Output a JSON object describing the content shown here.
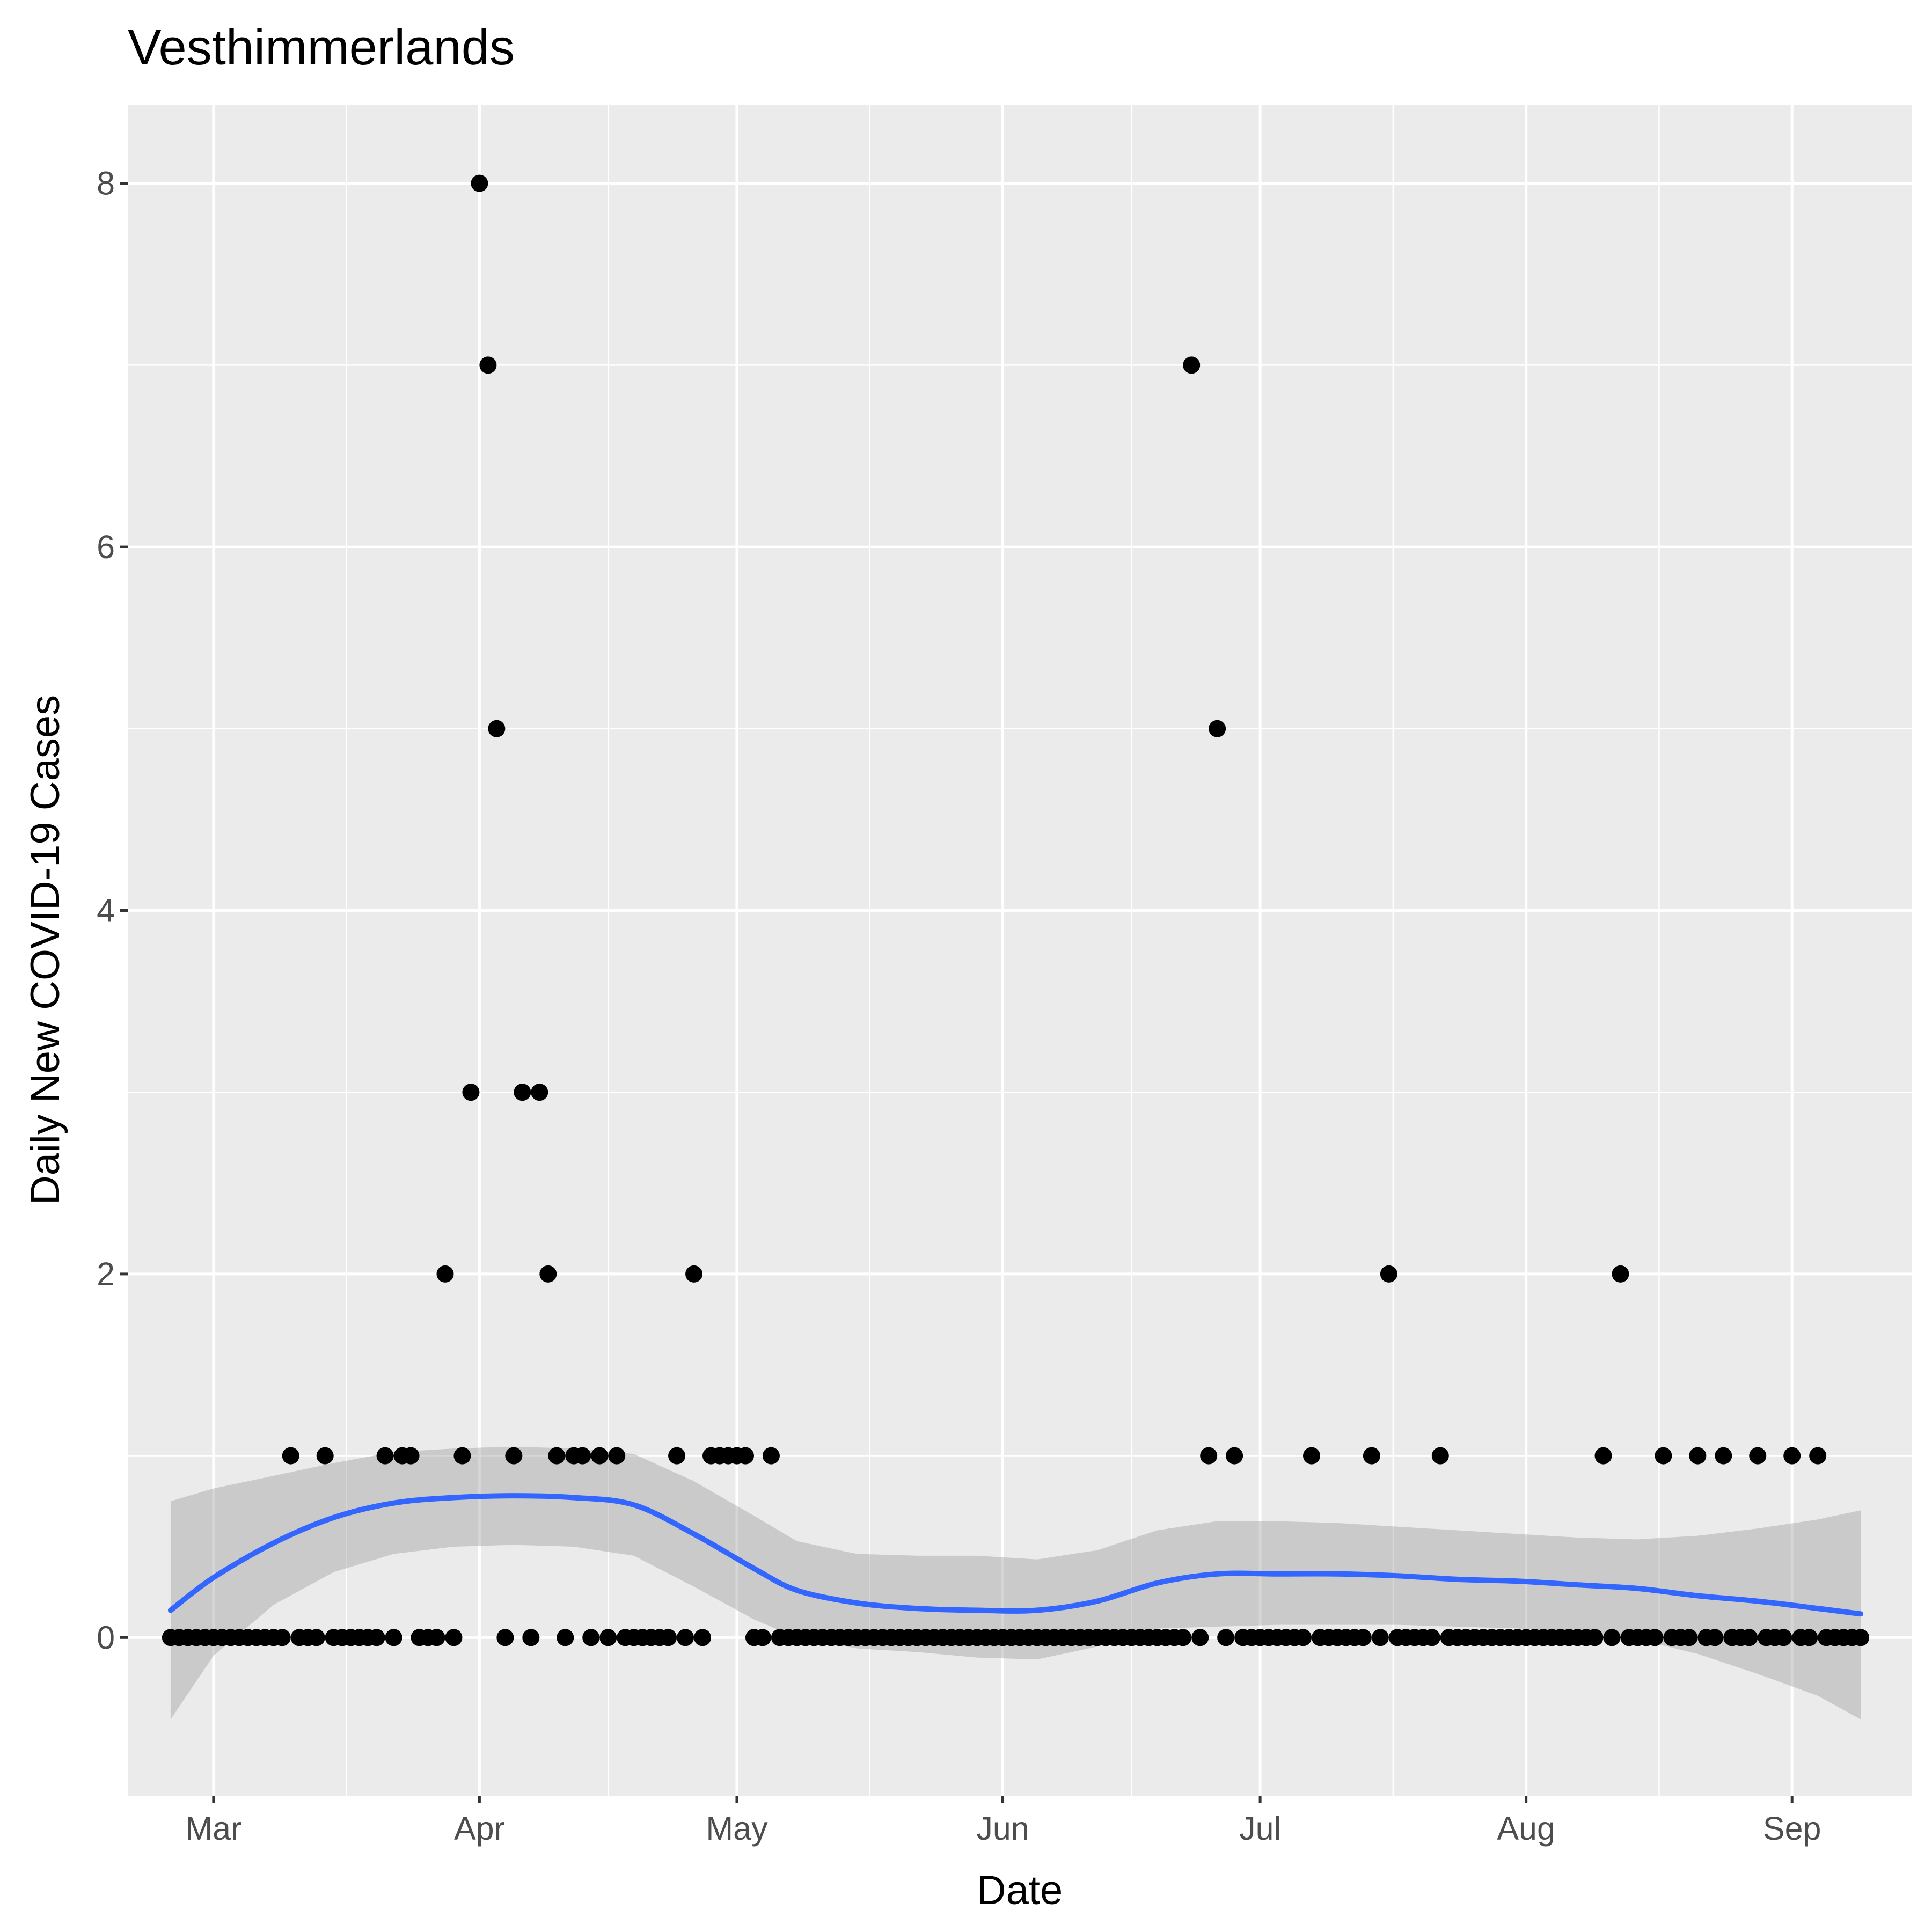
{
  "chart_data": {
    "type": "scatter",
    "title": "Vesthimmerlands",
    "xlabel": "Date",
    "ylabel": "Daily New COVID-19 Cases",
    "x_type": "date",
    "xlim": [
      "2020-02-20",
      "2020-09-15"
    ],
    "ylim": [
      -0.87,
      8.43
    ],
    "x_ticks": [
      {
        "date": "2020-03-01",
        "label": "Mar"
      },
      {
        "date": "2020-04-01",
        "label": "Apr"
      },
      {
        "date": "2020-05-01",
        "label": "May"
      },
      {
        "date": "2020-06-01",
        "label": "Jun"
      },
      {
        "date": "2020-07-01",
        "label": "Jul"
      },
      {
        "date": "2020-08-01",
        "label": "Aug"
      },
      {
        "date": "2020-09-01",
        "label": "Sep"
      }
    ],
    "y_ticks": [
      0,
      2,
      4,
      6,
      8
    ],
    "grid": true,
    "series": [
      {
        "type": "points",
        "color": "#000000",
        "points": [
          [
            "2020-02-25",
            0
          ],
          [
            "2020-02-26",
            0
          ],
          [
            "2020-02-27",
            0
          ],
          [
            "2020-02-28",
            0
          ],
          [
            "2020-02-29",
            0
          ],
          [
            "2020-03-01",
            0
          ],
          [
            "2020-03-02",
            0
          ],
          [
            "2020-03-03",
            0
          ],
          [
            "2020-03-04",
            0
          ],
          [
            "2020-03-05",
            0
          ],
          [
            "2020-03-06",
            0
          ],
          [
            "2020-03-07",
            0
          ],
          [
            "2020-03-08",
            0
          ],
          [
            "2020-03-09",
            0
          ],
          [
            "2020-03-10",
            1
          ],
          [
            "2020-03-11",
            0
          ],
          [
            "2020-03-12",
            0
          ],
          [
            "2020-03-13",
            0
          ],
          [
            "2020-03-14",
            1
          ],
          [
            "2020-03-15",
            0
          ],
          [
            "2020-03-16",
            0
          ],
          [
            "2020-03-17",
            0
          ],
          [
            "2020-03-18",
            0
          ],
          [
            "2020-03-19",
            0
          ],
          [
            "2020-03-20",
            0
          ],
          [
            "2020-03-21",
            1
          ],
          [
            "2020-03-22",
            0
          ],
          [
            "2020-03-23",
            1
          ],
          [
            "2020-03-24",
            1
          ],
          [
            "2020-03-25",
            0
          ],
          [
            "2020-03-26",
            0
          ],
          [
            "2020-03-27",
            0
          ],
          [
            "2020-03-28",
            2
          ],
          [
            "2020-03-29",
            0
          ],
          [
            "2020-03-30",
            1
          ],
          [
            "2020-03-31",
            3
          ],
          [
            "2020-04-01",
            8
          ],
          [
            "2020-04-02",
            7
          ],
          [
            "2020-04-03",
            5
          ],
          [
            "2020-04-04",
            0
          ],
          [
            "2020-04-05",
            1
          ],
          [
            "2020-04-06",
            3
          ],
          [
            "2020-04-07",
            0
          ],
          [
            "2020-04-08",
            3
          ],
          [
            "2020-04-09",
            2
          ],
          [
            "2020-04-10",
            1
          ],
          [
            "2020-04-11",
            0
          ],
          [
            "2020-04-12",
            1
          ],
          [
            "2020-04-13",
            1
          ],
          [
            "2020-04-14",
            0
          ],
          [
            "2020-04-15",
            1
          ],
          [
            "2020-04-16",
            0
          ],
          [
            "2020-04-17",
            1
          ],
          [
            "2020-04-18",
            0
          ],
          [
            "2020-04-19",
            0
          ],
          [
            "2020-04-20",
            0
          ],
          [
            "2020-04-21",
            0
          ],
          [
            "2020-04-22",
            0
          ],
          [
            "2020-04-23",
            0
          ],
          [
            "2020-04-24",
            1
          ],
          [
            "2020-04-25",
            0
          ],
          [
            "2020-04-26",
            2
          ],
          [
            "2020-04-27",
            0
          ],
          [
            "2020-04-28",
            1
          ],
          [
            "2020-04-29",
            1
          ],
          [
            "2020-04-30",
            1
          ],
          [
            "2020-05-01",
            1
          ],
          [
            "2020-05-02",
            1
          ],
          [
            "2020-05-03",
            0
          ],
          [
            "2020-05-04",
            0
          ],
          [
            "2020-05-05",
            1
          ],
          [
            "2020-05-06",
            0
          ],
          [
            "2020-05-07",
            0
          ],
          [
            "2020-05-08",
            0
          ],
          [
            "2020-05-09",
            0
          ],
          [
            "2020-05-10",
            0
          ],
          [
            "2020-05-11",
            0
          ],
          [
            "2020-05-12",
            0
          ],
          [
            "2020-05-13",
            0
          ],
          [
            "2020-05-14",
            0
          ],
          [
            "2020-05-15",
            0
          ],
          [
            "2020-05-16",
            0
          ],
          [
            "2020-05-17",
            0
          ],
          [
            "2020-05-18",
            0
          ],
          [
            "2020-05-19",
            0
          ],
          [
            "2020-05-20",
            0
          ],
          [
            "2020-05-21",
            0
          ],
          [
            "2020-05-22",
            0
          ],
          [
            "2020-05-23",
            0
          ],
          [
            "2020-05-24",
            0
          ],
          [
            "2020-05-25",
            0
          ],
          [
            "2020-05-26",
            0
          ],
          [
            "2020-05-27",
            0
          ],
          [
            "2020-05-28",
            0
          ],
          [
            "2020-05-29",
            0
          ],
          [
            "2020-05-30",
            0
          ],
          [
            "2020-05-31",
            0
          ],
          [
            "2020-06-01",
            0
          ],
          [
            "2020-06-02",
            0
          ],
          [
            "2020-06-03",
            0
          ],
          [
            "2020-06-04",
            0
          ],
          [
            "2020-06-05",
            0
          ],
          [
            "2020-06-06",
            0
          ],
          [
            "2020-06-07",
            0
          ],
          [
            "2020-06-08",
            0
          ],
          [
            "2020-06-09",
            0
          ],
          [
            "2020-06-10",
            0
          ],
          [
            "2020-06-11",
            0
          ],
          [
            "2020-06-12",
            0
          ],
          [
            "2020-06-13",
            0
          ],
          [
            "2020-06-14",
            0
          ],
          [
            "2020-06-15",
            0
          ],
          [
            "2020-06-16",
            0
          ],
          [
            "2020-06-17",
            0
          ],
          [
            "2020-06-18",
            0
          ],
          [
            "2020-06-19",
            0
          ],
          [
            "2020-06-20",
            0
          ],
          [
            "2020-06-21",
            0
          ],
          [
            "2020-06-22",
            0
          ],
          [
            "2020-06-23",
            7
          ],
          [
            "2020-06-24",
            0
          ],
          [
            "2020-06-25",
            1
          ],
          [
            "2020-06-26",
            5
          ],
          [
            "2020-06-27",
            0
          ],
          [
            "2020-06-28",
            1
          ],
          [
            "2020-06-29",
            0
          ],
          [
            "2020-06-30",
            0
          ],
          [
            "2020-07-01",
            0
          ],
          [
            "2020-07-02",
            0
          ],
          [
            "2020-07-03",
            0
          ],
          [
            "2020-07-04",
            0
          ],
          [
            "2020-07-05",
            0
          ],
          [
            "2020-07-06",
            0
          ],
          [
            "2020-07-07",
            1
          ],
          [
            "2020-07-08",
            0
          ],
          [
            "2020-07-09",
            0
          ],
          [
            "2020-07-10",
            0
          ],
          [
            "2020-07-11",
            0
          ],
          [
            "2020-07-12",
            0
          ],
          [
            "2020-07-13",
            0
          ],
          [
            "2020-07-14",
            1
          ],
          [
            "2020-07-15",
            0
          ],
          [
            "2020-07-16",
            2
          ],
          [
            "2020-07-17",
            0
          ],
          [
            "2020-07-18",
            0
          ],
          [
            "2020-07-19",
            0
          ],
          [
            "2020-07-20",
            0
          ],
          [
            "2020-07-21",
            0
          ],
          [
            "2020-07-22",
            1
          ],
          [
            "2020-07-23",
            0
          ],
          [
            "2020-07-24",
            0
          ],
          [
            "2020-07-25",
            0
          ],
          [
            "2020-07-26",
            0
          ],
          [
            "2020-07-27",
            0
          ],
          [
            "2020-07-28",
            0
          ],
          [
            "2020-07-29",
            0
          ],
          [
            "2020-07-30",
            0
          ],
          [
            "2020-07-31",
            0
          ],
          [
            "2020-08-01",
            0
          ],
          [
            "2020-08-02",
            0
          ],
          [
            "2020-08-03",
            0
          ],
          [
            "2020-08-04",
            0
          ],
          [
            "2020-08-05",
            0
          ],
          [
            "2020-08-06",
            0
          ],
          [
            "2020-08-07",
            0
          ],
          [
            "2020-08-08",
            0
          ],
          [
            "2020-08-09",
            0
          ],
          [
            "2020-08-10",
            1
          ],
          [
            "2020-08-11",
            0
          ],
          [
            "2020-08-12",
            2
          ],
          [
            "2020-08-13",
            0
          ],
          [
            "2020-08-14",
            0
          ],
          [
            "2020-08-15",
            0
          ],
          [
            "2020-08-16",
            0
          ],
          [
            "2020-08-17",
            1
          ],
          [
            "2020-08-18",
            0
          ],
          [
            "2020-08-19",
            0
          ],
          [
            "2020-08-20",
            0
          ],
          [
            "2020-08-21",
            1
          ],
          [
            "2020-08-22",
            0
          ],
          [
            "2020-08-23",
            0
          ],
          [
            "2020-08-24",
            1
          ],
          [
            "2020-08-25",
            0
          ],
          [
            "2020-08-26",
            0
          ],
          [
            "2020-08-27",
            0
          ],
          [
            "2020-08-28",
            1
          ],
          [
            "2020-08-29",
            0
          ],
          [
            "2020-08-30",
            0
          ],
          [
            "2020-08-31",
            0
          ],
          [
            "2020-09-01",
            1
          ],
          [
            "2020-09-02",
            0
          ],
          [
            "2020-09-03",
            0
          ],
          [
            "2020-09-04",
            1
          ],
          [
            "2020-09-05",
            0
          ],
          [
            "2020-09-06",
            0
          ],
          [
            "2020-09-07",
            0
          ],
          [
            "2020-09-08",
            0
          ],
          [
            "2020-09-09",
            0
          ]
        ]
      },
      {
        "type": "smooth",
        "color": "#3366FF",
        "band_color": "#999999",
        "points": [
          [
            "2020-02-25",
            0.15,
            -0.45,
            0.75
          ],
          [
            "2020-03-01",
            0.33,
            -0.1,
            0.82
          ],
          [
            "2020-03-08",
            0.52,
            0.18,
            0.89
          ],
          [
            "2020-03-15",
            0.66,
            0.36,
            0.96
          ],
          [
            "2020-03-22",
            0.74,
            0.46,
            1.02
          ],
          [
            "2020-03-29",
            0.77,
            0.5,
            1.04
          ],
          [
            "2020-04-05",
            0.78,
            0.51,
            1.05
          ],
          [
            "2020-04-12",
            0.77,
            0.5,
            1.04
          ],
          [
            "2020-04-19",
            0.73,
            0.45,
            1.01
          ],
          [
            "2020-04-26",
            0.57,
            0.28,
            0.86
          ],
          [
            "2020-05-03",
            0.38,
            0.1,
            0.67
          ],
          [
            "2020-05-08",
            0.26,
            0.0,
            0.53
          ],
          [
            "2020-05-15",
            0.19,
            -0.06,
            0.46
          ],
          [
            "2020-05-22",
            0.16,
            -0.08,
            0.45
          ],
          [
            "2020-05-29",
            0.15,
            -0.11,
            0.45
          ],
          [
            "2020-06-05",
            0.15,
            -0.12,
            0.43
          ],
          [
            "2020-06-12",
            0.2,
            -0.05,
            0.48
          ],
          [
            "2020-06-19",
            0.3,
            0.05,
            0.59
          ],
          [
            "2020-06-26",
            0.35,
            0.06,
            0.64
          ],
          [
            "2020-07-03",
            0.35,
            0.07,
            0.64
          ],
          [
            "2020-07-10",
            0.35,
            0.07,
            0.63
          ],
          [
            "2020-07-17",
            0.34,
            0.07,
            0.61
          ],
          [
            "2020-07-24",
            0.32,
            0.06,
            0.59
          ],
          [
            "2020-07-31",
            0.31,
            0.05,
            0.57
          ],
          [
            "2020-08-07",
            0.29,
            0.03,
            0.55
          ],
          [
            "2020-08-14",
            0.27,
            -0.01,
            0.54
          ],
          [
            "2020-08-21",
            0.23,
            -0.09,
            0.56
          ],
          [
            "2020-08-28",
            0.2,
            -0.2,
            0.6
          ],
          [
            "2020-09-04",
            0.16,
            -0.32,
            0.65
          ],
          [
            "2020-09-09",
            0.13,
            -0.45,
            0.7
          ]
        ]
      }
    ]
  }
}
